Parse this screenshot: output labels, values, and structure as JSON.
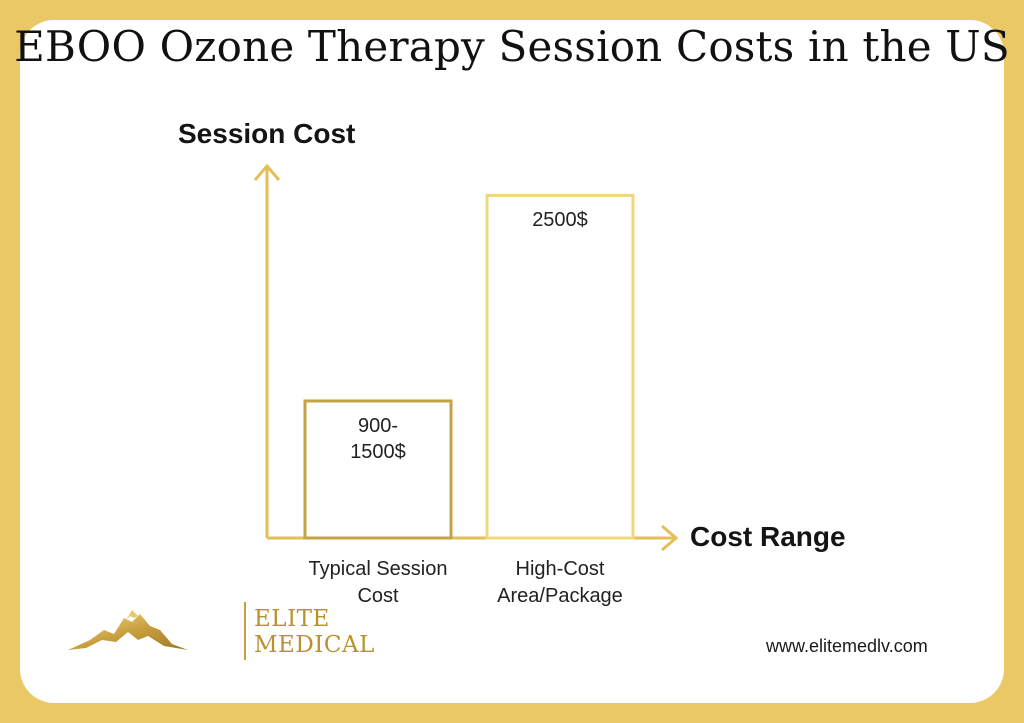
{
  "colors": {
    "background": "#ebc866",
    "axis": "#e2bf57",
    "bar1": "#c4a344",
    "bar2": "#f0d77c",
    "logo": "#b8922c"
  },
  "chart_data": {
    "type": "bar",
    "title": "EBOO Ozone Therapy Session Costs in the US",
    "ylabel": "Session Cost",
    "xlabel": "Cost Range",
    "categories": [
      "Typical Session Cost",
      "High-Cost Area/Package"
    ],
    "category_lines": [
      [
        "Typical Session",
        "Cost"
      ],
      [
        "High-Cost",
        "Area/Package"
      ]
    ],
    "values": [
      1000,
      2500
    ],
    "data_labels": [
      [
        "900-",
        "1500$"
      ],
      [
        "2500$"
      ]
    ],
    "ylim": [
      0,
      2700
    ],
    "grid": false,
    "legend": "none"
  },
  "logo": {
    "line1": "ELITE",
    "line2": "MEDICAL"
  },
  "footer": {
    "website": "www.elitemedlv.com"
  }
}
